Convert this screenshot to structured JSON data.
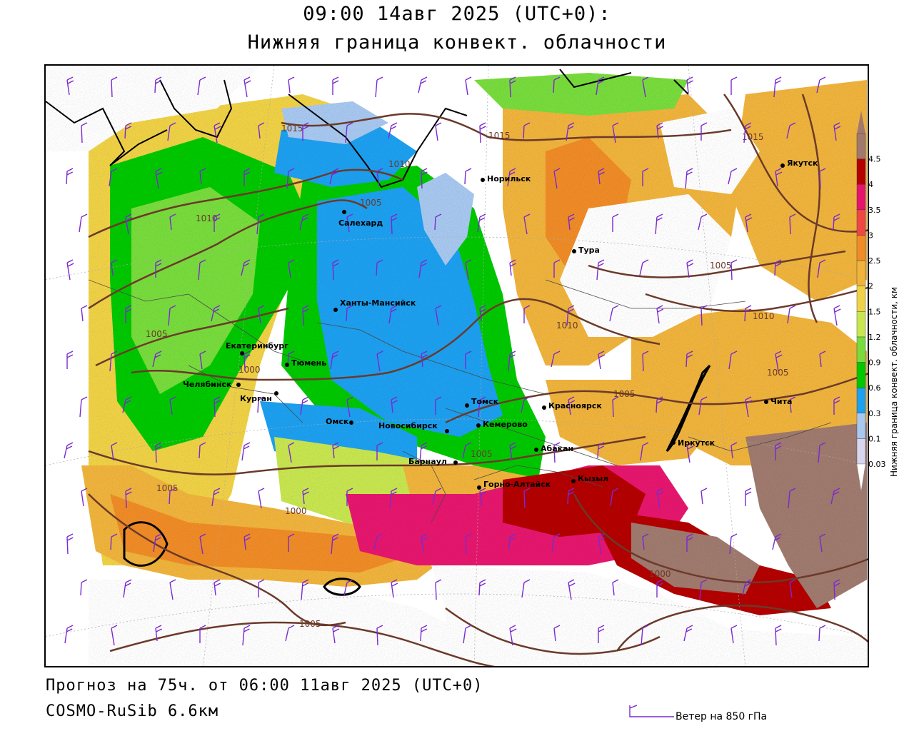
{
  "title": {
    "line1": "09:00 14авг 2025 (UTC+0):",
    "line2": "Нижняя граница конвект. облачности"
  },
  "footer": {
    "forecast": "Прогноз на 75ч. от 06:00 11авг 2025 (UTC+0)",
    "model": "COSMO-RuSib 6.6км",
    "wind_legend": "Ветер на 850 гПа"
  },
  "legend": {
    "title": "Нижняя граница конвект. облачности, км",
    "levels": [
      "0.03",
      "0.1",
      "0.3",
      "0.6",
      "0.9",
      "1.2",
      "1.5",
      "2",
      "2.5",
      "3",
      "3.5",
      "4",
      "4.5"
    ],
    "colors": [
      "#d6d6f0",
      "#a8c8f0",
      "#1ea0f0",
      "#00c800",
      "#78dc3c",
      "#c8e650",
      "#f0d246",
      "#f0b43c",
      "#f08c28",
      "#f04646",
      "#e6146e",
      "#b40000",
      "#a07a6e"
    ]
  },
  "cities": [
    {
      "name": "Норильск"
    },
    {
      "name": "Якутск"
    },
    {
      "name": "Салехард"
    },
    {
      "name": "Тура"
    },
    {
      "name": "Ханты-Мансийск"
    },
    {
      "name": "Екатеринбург"
    },
    {
      "name": "Тюмень"
    },
    {
      "name": "Челябинск"
    },
    {
      "name": "Курган"
    },
    {
      "name": "Омск"
    },
    {
      "name": "Томск"
    },
    {
      "name": "Красноярск"
    },
    {
      "name": "Новосибирск"
    },
    {
      "name": "Кемерово"
    },
    {
      "name": "Абакан"
    },
    {
      "name": "Барнаул"
    },
    {
      "name": "Иркутск"
    },
    {
      "name": "Чита"
    },
    {
      "name": "Горно-Алтайск"
    },
    {
      "name": "Кызыл"
    }
  ],
  "isobars": [
    "1015",
    "1010",
    "1015",
    "1005",
    "1015",
    "1005",
    "1010",
    "1010",
    "1000",
    "1010",
    "1005",
    "1005",
    "1005",
    "1005",
    "1000",
    "1000",
    "1005",
    "1005"
  ]
}
